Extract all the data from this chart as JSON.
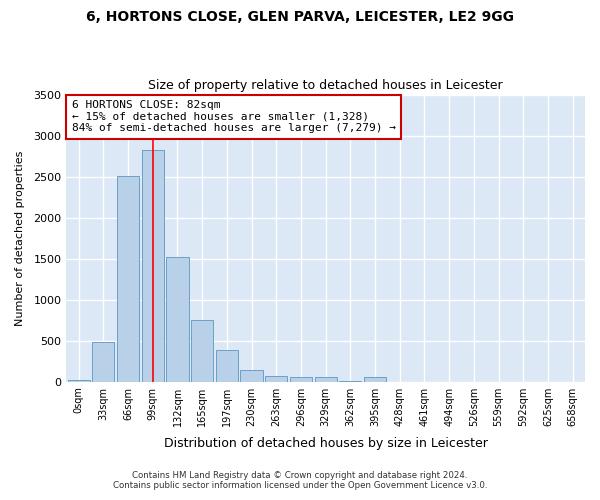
{
  "title1": "6, HORTONS CLOSE, GLEN PARVA, LEICESTER, LE2 9GG",
  "title2": "Size of property relative to detached houses in Leicester",
  "xlabel": "Distribution of detached houses by size in Leicester",
  "ylabel": "Number of detached properties",
  "bar_color": "#b8d0e8",
  "bar_edge_color": "#6ca0c8",
  "background_color": "#dce8f5",
  "grid_color": "#ffffff",
  "categories": [
    "0sqm",
    "33sqm",
    "66sqm",
    "99sqm",
    "132sqm",
    "165sqm",
    "197sqm",
    "230sqm",
    "263sqm",
    "296sqm",
    "329sqm",
    "362sqm",
    "395sqm",
    "428sqm",
    "461sqm",
    "494sqm",
    "526sqm",
    "559sqm",
    "592sqm",
    "625sqm",
    "658sqm"
  ],
  "values": [
    20,
    480,
    2510,
    2820,
    1520,
    750,
    380,
    140,
    70,
    55,
    55,
    5,
    55,
    0,
    0,
    0,
    0,
    0,
    0,
    0,
    0
  ],
  "ylim": [
    0,
    3500
  ],
  "yticks": [
    0,
    500,
    1000,
    1500,
    2000,
    2500,
    3000,
    3500
  ],
  "red_line_x": 3.0,
  "annotation_text": "6 HORTONS CLOSE: 82sqm\n← 15% of detached houses are smaller (1,328)\n84% of semi-detached houses are larger (7,279) →",
  "annotation_box_color": "#ffffff",
  "annotation_box_edge": "#cc0000",
  "footer1": "Contains HM Land Registry data © Crown copyright and database right 2024.",
  "footer2": "Contains public sector information licensed under the Open Government Licence v3.0."
}
